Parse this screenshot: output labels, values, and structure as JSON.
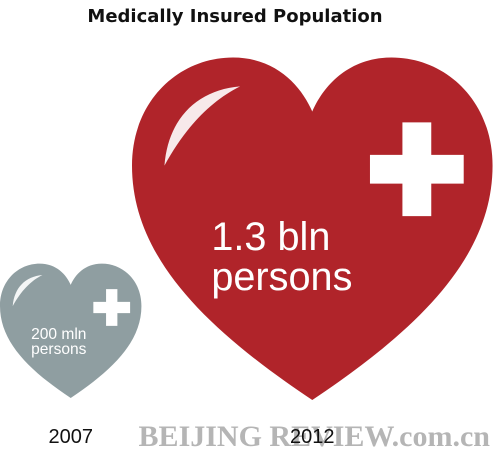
{
  "chart_data": {
    "type": "pictogram",
    "title": "Medically Insured Population",
    "categories": [
      "2007",
      "2012"
    ],
    "values": [
      200,
      1300
    ],
    "value_labels": [
      "200 mln persons",
      "1.3 bln persons"
    ],
    "colors": [
      "#8f9ea1",
      "#b0242a"
    ]
  },
  "watermark": "BEIJING REVIEW.com.cn"
}
